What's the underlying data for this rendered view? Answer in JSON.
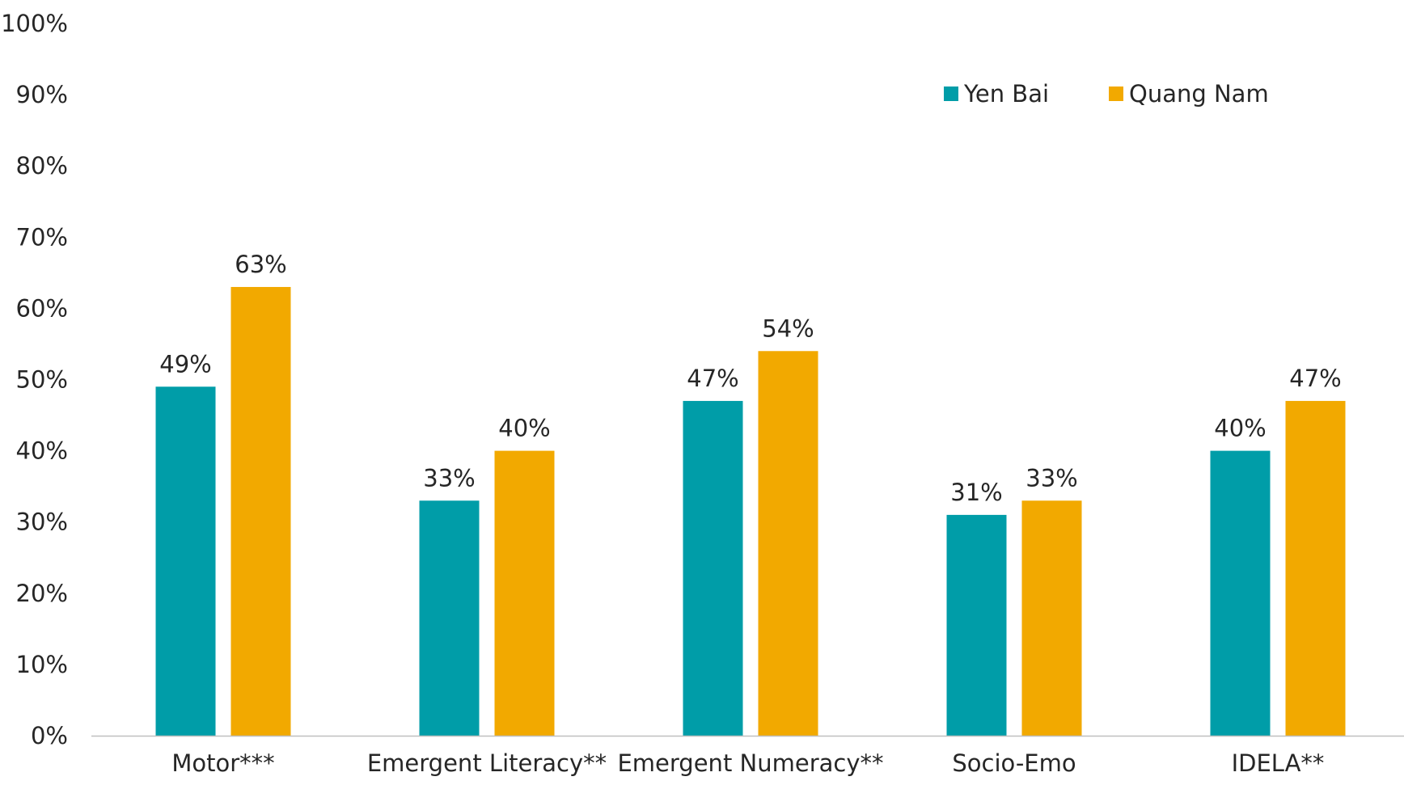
{
  "chart_data": {
    "type": "bar",
    "categories": [
      "Motor***",
      "Emergent Literacy**",
      "Emergent Numeracy**",
      "Socio-Emo",
      "IDELA**"
    ],
    "series": [
      {
        "name": "Yen Bai",
        "values": [
          49,
          33,
          47,
          31,
          40
        ],
        "labels": [
          "49%",
          "33%",
          "47%",
          "31%",
          "40%"
        ],
        "color": "#009DA8"
      },
      {
        "name": "Quang Nam",
        "values": [
          63,
          40,
          54,
          33,
          47
        ],
        "labels": [
          "63%",
          "40%",
          "54%",
          "33%",
          "47%"
        ],
        "color": "#F2A900"
      }
    ],
    "ylim": [
      0,
      100
    ],
    "yticks": [
      "0%",
      "10%",
      "20%",
      "30%",
      "40%",
      "50%",
      "60%",
      "70%",
      "80%",
      "90%",
      "100%"
    ],
    "grid": false,
    "legend_position": "top-right",
    "axis_color": "#BFBFBF"
  }
}
